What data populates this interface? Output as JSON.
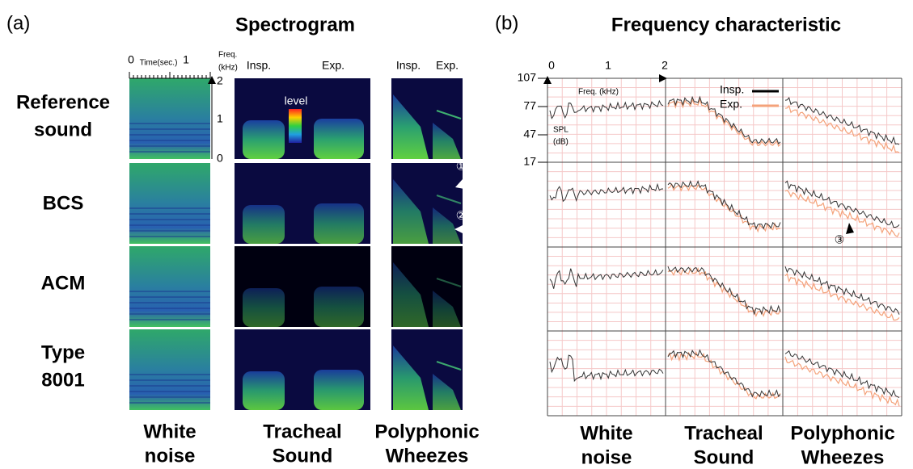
{
  "panel_a": {
    "label": "(a)",
    "title": "Spectrogram",
    "rows": [
      [
        "Reference",
        "sound"
      ],
      [
        "BCS"
      ],
      [
        "ACM"
      ],
      [
        "Type",
        "8001"
      ]
    ],
    "columns": [
      [
        "White",
        "noise"
      ],
      [
        "Tracheal",
        "Sound"
      ],
      [
        "Polyphonic",
        "Wheezes"
      ]
    ],
    "time_axis": {
      "label": "Time(sec.)",
      "ticks": [
        "0",
        "1"
      ]
    },
    "freq_axis": {
      "label": [
        "Freq.",
        "(kHz)"
      ],
      "ticks": [
        "2",
        "1",
        "0"
      ]
    },
    "phase_labels": [
      "Insp.",
      "Exp."
    ],
    "colorbar_label": "level",
    "markers": [
      "①",
      "②"
    ]
  },
  "panel_b": {
    "label": "(b)",
    "title": "Frequency characteristic",
    "x_ticks": [
      "0",
      "1",
      "2"
    ],
    "x_label": "Freq. (kHz)",
    "y_ticks": [
      "107",
      "77",
      "47",
      "17"
    ],
    "y_label": [
      "SPL",
      "(dB)"
    ],
    "legend": [
      "Insp.",
      "Exp."
    ],
    "marker": "③",
    "columns": [
      [
        "White",
        "noise"
      ],
      [
        "Tracheal",
        "Sound"
      ],
      [
        "Polyphonic",
        "Wheezes"
      ]
    ]
  }
}
